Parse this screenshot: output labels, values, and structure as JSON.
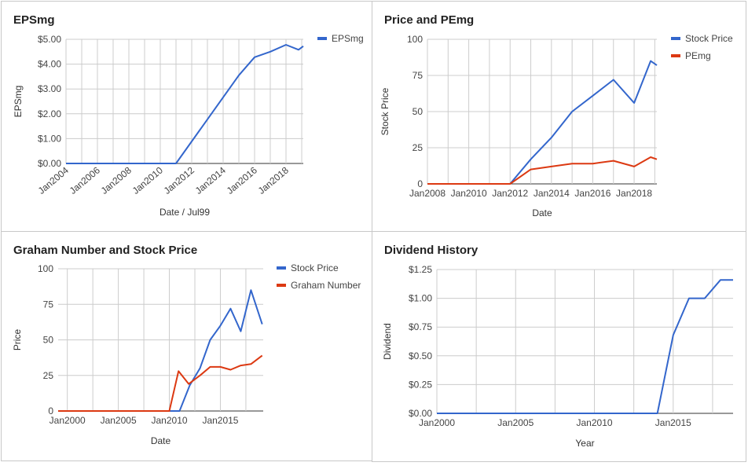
{
  "colors": {
    "blue": "#3366cc",
    "red": "#dc3912"
  },
  "chart_data": [
    {
      "type": "line",
      "title": "EPSmg",
      "xlabel": "Date / Jul99",
      "ylabel": "EPSmg",
      "x_ticks": [
        "Jan2004",
        "Jan2006",
        "Jan2008",
        "Jan2010",
        "Jan2012",
        "Jan2014",
        "Jan2016",
        "Jan2018"
      ],
      "y_ticks": [
        "$0.00",
        "$1.00",
        "$2.00",
        "$3.00",
        "$4.00",
        "$5.00"
      ],
      "xlim": [
        2004.0,
        2019.1
      ],
      "ylim": [
        0,
        5
      ],
      "legend_position": "right",
      "series": [
        {
          "name": "EPSmg",
          "color": "#3366cc",
          "x": [
            2004.0,
            2011.0,
            2015.0,
            2016.0,
            2017.0,
            2018.0,
            2018.8,
            2019.1
          ],
          "y": [
            0,
            0,
            3.55,
            4.28,
            4.5,
            4.78,
            4.58,
            4.72
          ]
        }
      ]
    },
    {
      "type": "line",
      "title": "Price and PEmg",
      "xlabel": "Date",
      "ylabel": "Stock Price",
      "x_ticks": [
        "Jan2008",
        "Jan2010",
        "Jan2012",
        "Jan2014",
        "Jan2016",
        "Jan2018"
      ],
      "y_ticks": [
        "0",
        "25",
        "50",
        "75",
        "100"
      ],
      "xlim": [
        2008.0,
        2019.1
      ],
      "ylim": [
        0,
        100
      ],
      "legend_position": "right",
      "series": [
        {
          "name": "Stock Price",
          "color": "#3366cc",
          "x": [
            2008.0,
            2012.0,
            2013.0,
            2014.0,
            2015.0,
            2016.0,
            2017.0,
            2018.0,
            2018.8,
            2019.1
          ],
          "y": [
            0,
            0,
            17,
            32,
            50,
            61,
            72,
            56,
            85,
            82
          ]
        },
        {
          "name": "PEmg",
          "color": "#dc3912",
          "x": [
            2008.0,
            2012.0,
            2013.0,
            2014.0,
            2015.0,
            2016.0,
            2017.0,
            2018.0,
            2018.8,
            2019.1
          ],
          "y": [
            0,
            0,
            10,
            12,
            14,
            14,
            16,
            12,
            18.5,
            17
          ]
        }
      ]
    },
    {
      "type": "line",
      "title": "Graham Number and Stock Price",
      "xlabel": "Date",
      "ylabel": "Price",
      "x_ticks": [
        "Jan2000",
        "Jan2005",
        "Jan2010",
        "Jan2015"
      ],
      "y_ticks": [
        "0",
        "25",
        "50",
        "75",
        "100"
      ],
      "xlim": [
        1999.1,
        2019.2
      ],
      "ylim": [
        0,
        100
      ],
      "legend_position": "right",
      "series": [
        {
          "name": "Stock Price",
          "color": "#3366cc",
          "x": [
            1999.1,
            2011.0,
            2012.0,
            2013.0,
            2014.0,
            2015.0,
            2016.0,
            2017.0,
            2018.0,
            2019.1
          ],
          "y": [
            0,
            0,
            18,
            30,
            50,
            60,
            72,
            56,
            85,
            61
          ]
        },
        {
          "name": "Graham Number",
          "color": "#dc3912",
          "x": [
            1999.1,
            2010.0,
            2010.9,
            2011.9,
            2013.0,
            2014.0,
            2015.0,
            2016.0,
            2017.0,
            2018.0,
            2019.1
          ],
          "y": [
            0,
            0,
            28,
            19,
            25,
            31,
            31,
            29,
            32,
            33,
            39
          ]
        }
      ]
    },
    {
      "type": "line",
      "title": "Dividend History",
      "xlabel": "Year",
      "ylabel": "Dividend",
      "x_ticks": [
        "Jan2000",
        "Jan2005",
        "Jan2010",
        "Jan2015"
      ],
      "y_ticks": [
        "$0.00",
        "$0.25",
        "$0.50",
        "$0.75",
        "$1.00",
        "$1.25"
      ],
      "xlim": [
        2000.0,
        2018.8
      ],
      "ylim": [
        0,
        1.25
      ],
      "legend_position": "none",
      "series": [
        {
          "name": "",
          "color": "#3366cc",
          "x": [
            2000.0,
            2014.0,
            2015.0,
            2016.0,
            2017.0,
            2018.0,
            2018.8
          ],
          "y": [
            0,
            0,
            0.68,
            1.0,
            1.0,
            1.16,
            1.16
          ]
        }
      ]
    }
  ]
}
